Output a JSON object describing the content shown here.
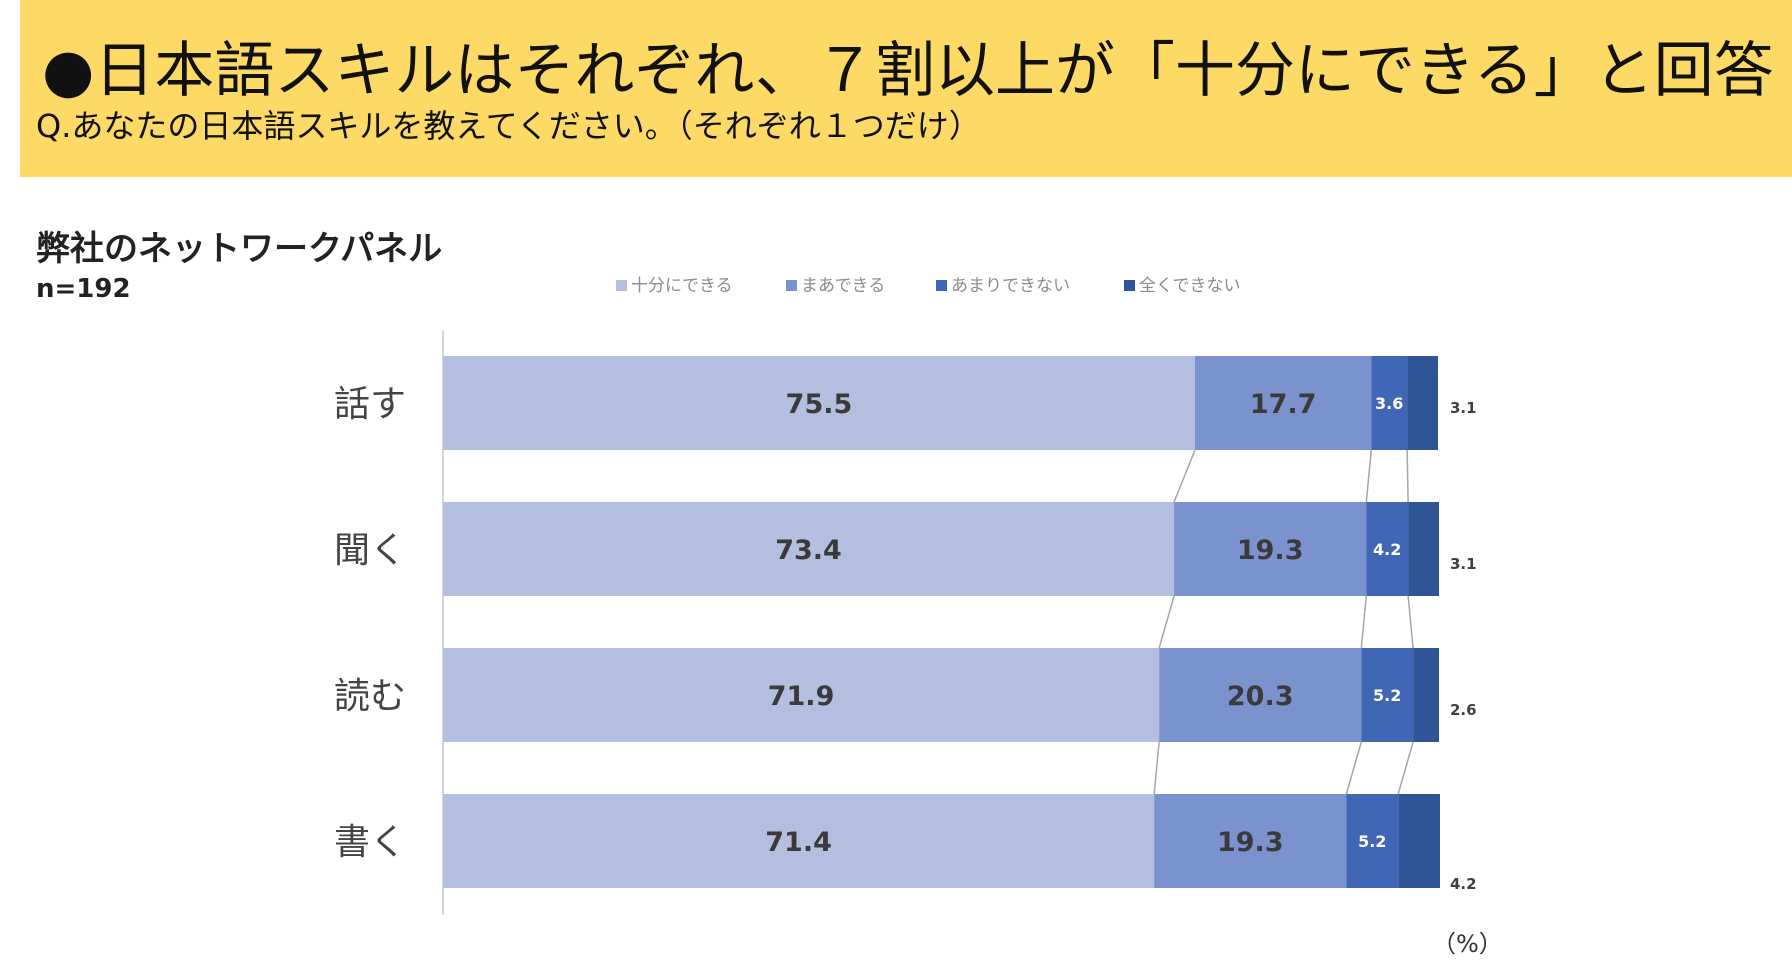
{
  "header": {
    "title": "●日本語スキルはそれぞれ、７割以上が「十分にできる」と回答",
    "question": "Q.あなたの日本語スキルを教えてください。（それぞれ１つだけ）"
  },
  "panel": {
    "title": "弊社のネットワークパネル",
    "sample": "n=192"
  },
  "unit_label": "（%）",
  "colors": {
    "banner": "#FDD966",
    "series": [
      "#B4BFDF",
      "#7A92CE",
      "#4066B6",
      "#2F5597"
    ]
  },
  "chart_data": {
    "type": "bar",
    "orientation": "horizontal",
    "stacked": true,
    "categories": [
      "話す",
      "聞く",
      "読む",
      "書く"
    ],
    "series": [
      {
        "name": "十分にできる",
        "values": [
          75.5,
          73.4,
          71.9,
          71.4
        ]
      },
      {
        "name": "まあできる",
        "values": [
          17.7,
          19.3,
          20.3,
          19.3
        ]
      },
      {
        "name": "あまりできない",
        "values": [
          3.6,
          4.2,
          5.2,
          5.2
        ]
      },
      {
        "name": "全くできない",
        "values": [
          3.1,
          3.1,
          2.6,
          4.2
        ]
      }
    ],
    "xlim": [
      0,
      100
    ],
    "legend_position": "top",
    "series_lines": true,
    "grid": false
  }
}
